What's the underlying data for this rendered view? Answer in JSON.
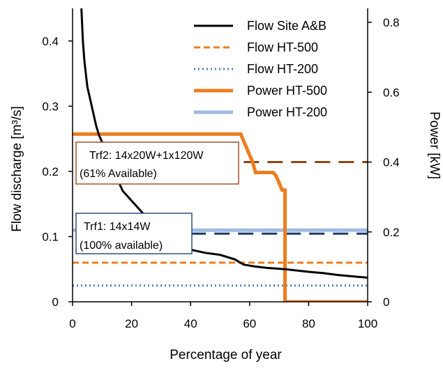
{
  "chart_data": {
    "type": "line",
    "xlabel": "Percentage of year",
    "ylabel_left": "Flow discharge [m³/s]",
    "ylabel_right": "Power [kW]",
    "xlim": [
      0,
      100
    ],
    "ylim_left": [
      0,
      0.45
    ],
    "ylim_right": [
      0,
      0.84
    ],
    "x_ticks": [
      "0",
      "20",
      "40",
      "60",
      "80",
      "100"
    ],
    "y_ticks_left": [
      "0",
      "0.1",
      "0.2",
      "0.3",
      "0.4"
    ],
    "y_ticks_right": [
      "0",
      "0.2",
      "0.4",
      "0.6",
      "0.8"
    ],
    "grid": false,
    "legend_position": "top-right",
    "series": [
      {
        "name": "Flow Site A&B",
        "axis": "left",
        "color": "#000000",
        "style": "solid",
        "x": [
          3,
          3.5,
          4,
          5,
          6,
          7,
          8,
          9,
          10,
          11,
          12,
          13,
          14,
          15,
          16,
          17,
          18,
          19,
          20,
          21,
          22,
          23,
          24,
          25,
          26,
          28,
          30,
          33,
          36,
          40,
          45,
          50,
          55,
          58,
          62,
          66,
          72,
          76,
          80,
          85,
          90,
          95,
          100
        ],
        "y": [
          0.45,
          0.4,
          0.37,
          0.33,
          0.31,
          0.29,
          0.27,
          0.255,
          0.245,
          0.235,
          0.225,
          0.215,
          0.205,
          0.195,
          0.18,
          0.17,
          0.165,
          0.16,
          0.155,
          0.15,
          0.145,
          0.14,
          0.135,
          0.13,
          0.125,
          0.115,
          0.105,
          0.095,
          0.088,
          0.08,
          0.075,
          0.072,
          0.065,
          0.057,
          0.054,
          0.052,
          0.05,
          0.048,
          0.046,
          0.044,
          0.041,
          0.039,
          0.037
        ]
      },
      {
        "name": "Flow HT-500",
        "axis": "left",
        "color": "#ED7D1F",
        "style": "dashed",
        "x": [
          0,
          100
        ],
        "y": [
          0.06,
          0.06
        ]
      },
      {
        "name": "Flow HT-200",
        "axis": "left",
        "color": "#4A7EC2",
        "style": "dotted",
        "x": [
          0,
          100
        ],
        "y": [
          0.025,
          0.025
        ]
      },
      {
        "name": "Power HT-500",
        "axis": "right",
        "color": "#ED7D1F",
        "style": "thick",
        "x": [
          0,
          57,
          58,
          59,
          60,
          61,
          62,
          68,
          69,
          71,
          72,
          72,
          100
        ],
        "y": [
          0.48,
          0.48,
          0.46,
          0.44,
          0.42,
          0.4,
          0.37,
          0.37,
          0.36,
          0.32,
          0.32,
          0,
          0
        ]
      },
      {
        "name": "Power HT-200",
        "axis": "right",
        "color": "#9DBBE3",
        "style": "thick",
        "x": [
          0,
          100
        ],
        "y": [
          0.205,
          0.205
        ]
      }
    ],
    "reference_lines": [
      {
        "axis": "right",
        "value": 0.4,
        "color": "#8B4513",
        "style": "long-dash",
        "x": [
          58,
          100
        ]
      },
      {
        "axis": "right",
        "value": 0.195,
        "color": "#1F3C66",
        "style": "long-dash",
        "x": [
          40,
          100
        ]
      }
    ],
    "annotations": [
      {
        "line1": "Trf2: 14x20W+1x120W",
        "line2": "(61% Available)",
        "border": "#A0522D"
      },
      {
        "line1": "Trf1: 14x14W",
        "line2": "(100% available)",
        "border": "#2E4F7A"
      }
    ]
  }
}
